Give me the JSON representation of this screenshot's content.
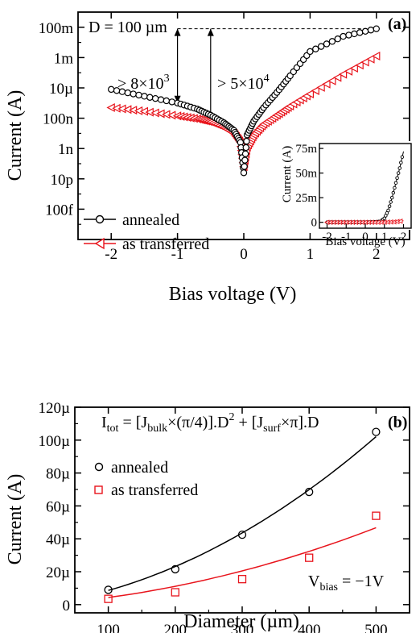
{
  "colors": {
    "annealed": "#000000",
    "transferred": "#e8141c"
  },
  "chart_data": [
    {
      "panel": "(a)",
      "type": "line",
      "yscale": "log",
      "xlabel": "Bias voltage (V)",
      "ylabel": "Current (A)",
      "xlim": [
        -2.5,
        2.5
      ],
      "ylim_log10": [
        -15,
        0
      ],
      "xticks": [
        -2,
        -1,
        0,
        1,
        2
      ],
      "xtick_labels": [
        "-2",
        "-1",
        "0",
        "1",
        "2"
      ],
      "yticks_log10": [
        -13,
        -11,
        -9,
        -7,
        -5,
        -3,
        -1
      ],
      "ytick_labels": [
        "100f",
        "10p",
        "1n",
        "100n",
        "10µ",
        "1m",
        "100m"
      ],
      "legend": {
        "placement": "lower-left",
        "items": [
          "annealed",
          "as transferred"
        ]
      },
      "annotations": {
        "diameter": "D = 100 µm",
        "ratio1": "> 8×10",
        "ratio1_exp": "3",
        "ratio2": "> 5×10",
        "ratio2_exp": "4"
      },
      "series": [
        {
          "name": "annealed",
          "marker": "circle",
          "x": [
            -2.0,
            -1.5,
            -1.0,
            -0.7,
            -0.5,
            -0.3,
            -0.15,
            -0.05,
            0.0,
            0.05,
            0.15,
            0.3,
            0.5,
            0.7,
            1.0,
            1.5,
            2.0
          ],
          "y_log10": [
            -5.1,
            -5.55,
            -6.0,
            -6.4,
            -6.8,
            -7.3,
            -7.8,
            -8.6,
            -10.6,
            -8.1,
            -7.2,
            -6.3,
            -5.3,
            -4.2,
            -2.6,
            -1.6,
            -1.1
          ]
        },
        {
          "name": "as transferred",
          "marker": "triangle-left",
          "x": [
            -2.0,
            -1.5,
            -1.0,
            -0.7,
            -0.5,
            -0.3,
            -0.15,
            -0.05,
            0.0,
            0.05,
            0.15,
            0.3,
            0.5,
            0.7,
            1.0,
            1.5,
            2.0
          ],
          "y_log10": [
            -6.3,
            -6.55,
            -6.85,
            -7.05,
            -7.25,
            -7.6,
            -8.0,
            -8.6,
            -10.2,
            -8.9,
            -8.1,
            -7.4,
            -6.8,
            -6.2,
            -5.4,
            -4.1,
            -2.9
          ]
        }
      ],
      "inset": {
        "type": "line",
        "yscale": "linear",
        "xlabel": "Bias voltage (V)",
        "ylabel": "Current (A)",
        "xlim": [
          -2.4,
          2.4
        ],
        "ylim": [
          -0.006,
          0.08
        ],
        "xticks": [
          -2,
          -1,
          0,
          1,
          2
        ],
        "xtick_labels": [
          "-2",
          "-1",
          "0",
          "1",
          "2"
        ],
        "yticks": [
          0,
          0.025,
          0.05,
          0.075
        ],
        "ytick_labels": [
          "0",
          "25m",
          "50m",
          "75m"
        ],
        "series": [
          {
            "name": "annealed",
            "x": [
              -2.0,
              -1.5,
              -1.0,
              -0.5,
              0.0,
              0.5,
              0.8,
              1.0,
              1.2,
              1.4,
              1.6,
              1.8,
              2.0
            ],
            "y": [
              0,
              0,
              0,
              0,
              0,
              0.0003,
              0.001,
              0.004,
              0.012,
              0.025,
              0.04,
              0.055,
              0.072
            ]
          },
          {
            "name": "as transferred",
            "x": [
              -2.0,
              -1.5,
              -1.0,
              -0.5,
              0.0,
              0.5,
              1.0,
              1.5,
              2.0
            ],
            "y": [
              0,
              0,
              0,
              0,
              0,
              0,
              0.0001,
              0.0004,
              0.0015
            ]
          }
        ]
      }
    },
    {
      "panel": "(b)",
      "type": "scatter",
      "xlabel": "Diameter (µm)",
      "ylabel": "Current (A)",
      "xlim": [
        50,
        550
      ],
      "ylim": [
        -5,
        120
      ],
      "y_unit": "µA",
      "xticks": [
        100,
        200,
        300,
        400,
        500
      ],
      "xtick_labels": [
        "100",
        "200",
        "300",
        "400",
        "500"
      ],
      "yticks": [
        0,
        20,
        40,
        60,
        80,
        100,
        120
      ],
      "ytick_labels": [
        "0",
        "20µ",
        "40µ",
        "60µ",
        "80µ",
        "100µ",
        "120µ"
      ],
      "legend": {
        "placement": "upper-left",
        "items": [
          "annealed",
          "as transferred"
        ]
      },
      "formula": {
        "p1": "I",
        "s1": "tot",
        "p2": " = [J",
        "s2": "bulk",
        "p3": "×(π/4)].D",
        "e1": "2",
        "p4": " + [J",
        "s3": "surf",
        "p5": "×π].D"
      },
      "bias": {
        "p1": "V",
        "s1": "bias",
        "p2": " = −1V"
      },
      "series": [
        {
          "name": "annealed",
          "marker": "circle",
          "x": [
            100,
            200,
            300,
            400,
            500
          ],
          "y": [
            9,
            21.5,
            42.5,
            68.5,
            105
          ]
        },
        {
          "name": "as transferred",
          "marker": "square",
          "x": [
            100,
            200,
            300,
            400,
            500
          ],
          "y": [
            3.5,
            7.5,
            15.5,
            28.5,
            54
          ]
        }
      ],
      "fits": [
        {
          "name": "annealed",
          "a": 0.000295,
          "b": 0.0567
        },
        {
          "name": "as transferred",
          "a": 0.000126,
          "b": 0.0305
        }
      ]
    }
  ]
}
